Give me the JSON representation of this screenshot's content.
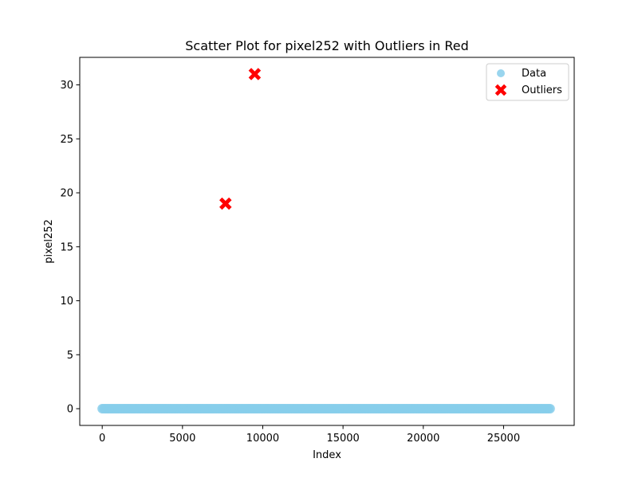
{
  "chart_data": {
    "type": "scatter",
    "title": "Scatter Plot for pixel252 with Outliers in Red",
    "xlabel": "Index",
    "ylabel": "pixel252",
    "xlim": [
      -1400,
      29400
    ],
    "ylim": [
      -1.55,
      32.55
    ],
    "x_ticks": [
      0,
      5000,
      10000,
      15000,
      20000,
      25000
    ],
    "y_ticks": [
      0,
      5,
      10,
      15,
      20,
      25,
      30
    ],
    "grid": false,
    "legend_position": "top-right",
    "series": [
      {
        "name": "Data",
        "marker": "circle",
        "color": "#87ceeb",
        "x_range": [
          0,
          27999
        ],
        "y_value": 0
      },
      {
        "name": "Outliers",
        "marker": "x-filled",
        "color": "#ff0000",
        "points": [
          {
            "x": 7680,
            "y": 19
          },
          {
            "x": 9500,
            "y": 31
          }
        ]
      }
    ]
  }
}
